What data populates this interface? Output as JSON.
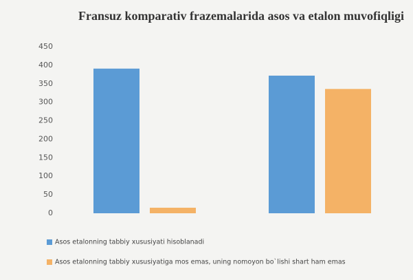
{
  "chart_data": {
    "type": "bar",
    "title": "Fransuz komparativ frazemalarida asos va etalon muvofiqligi",
    "categories": [
      null,
      null
    ],
    "series": [
      {
        "name": "Asos etalonning tabbiy xususiyati hisoblanadi",
        "color": "#5b9bd5",
        "values": [
          391,
          372
        ]
      },
      {
        "name": "Asos etalonning tabbiy xususiyatiga mos emas, uning nomoyon bo`lishi shart ham emas",
        "color": "#f4b266",
        "values": [
          15,
          336
        ]
      }
    ],
    "ylim": [
      0,
      450
    ],
    "yticks": [
      0,
      50,
      100,
      150,
      200,
      250,
      300,
      350,
      400,
      450
    ],
    "grid": false
  }
}
